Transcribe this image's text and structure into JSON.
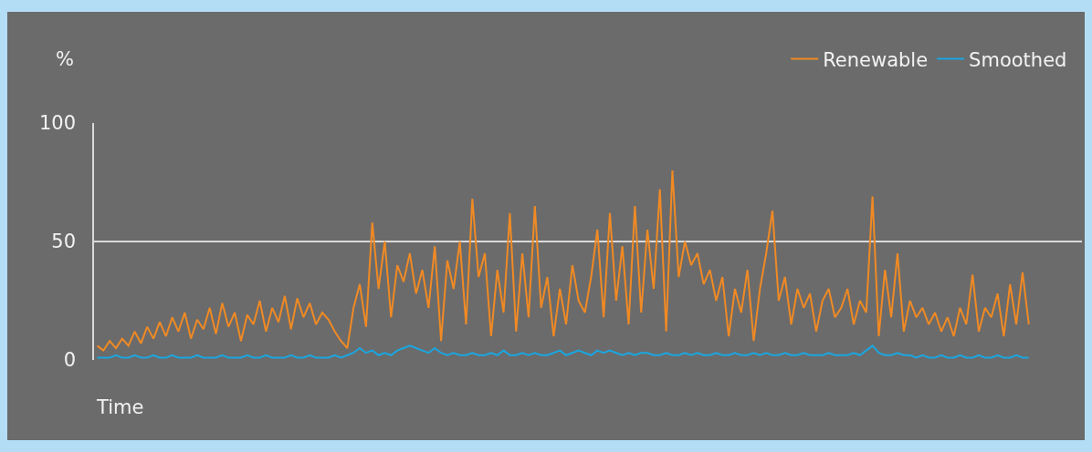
{
  "chart_data": {
    "type": "line",
    "xlabel": "Time",
    "ylabel": "%",
    "categories": [
      null,
      null,
      null,
      null,
      null,
      null,
      null,
      null,
      null,
      null,
      null,
      null,
      null,
      null,
      null,
      null,
      null,
      null,
      null,
      null,
      null,
      null,
      null,
      null,
      null,
      null,
      null,
      null,
      null,
      null,
      null,
      null,
      null,
      null,
      null,
      null,
      null,
      null,
      null,
      null,
      null,
      null,
      null,
      null,
      null,
      null,
      null,
      null,
      null,
      null,
      null,
      null,
      null,
      null,
      null,
      null,
      null,
      null,
      null,
      null,
      null,
      null,
      null,
      null,
      null,
      null,
      null,
      null,
      null,
      null,
      null,
      null,
      null,
      null,
      null,
      null,
      null,
      null,
      null,
      null,
      null,
      null,
      null,
      null,
      null,
      null,
      null,
      null,
      null,
      null,
      null,
      null,
      null,
      null,
      null,
      null,
      null,
      null,
      null,
      null,
      null,
      null,
      null,
      null,
      null,
      null,
      null,
      null,
      null,
      null,
      null,
      null,
      null,
      null,
      null,
      null,
      null,
      null,
      null,
      null,
      null,
      null,
      null,
      null,
      null,
      null,
      null,
      null,
      null,
      null,
      null,
      null,
      null,
      null,
      null,
      null,
      null,
      null,
      null,
      null,
      null,
      null,
      null,
      null,
      null,
      null,
      null,
      null,
      null,
      null,
      null,
      null,
      null,
      null,
      null,
      null,
      null,
      null
    ],
    "series": [
      {
        "name": "Renewable",
        "color": "#f08a24",
        "values": [
          6,
          4,
          8,
          5,
          9,
          6,
          12,
          7,
          14,
          9,
          16,
          10,
          18,
          12,
          20,
          9,
          17,
          13,
          22,
          11,
          24,
          14,
          20,
          8,
          19,
          15,
          25,
          12,
          22,
          16,
          27,
          13,
          26,
          18,
          24,
          15,
          20,
          17,
          12,
          8,
          5,
          22,
          32,
          14,
          58,
          30,
          50,
          18,
          40,
          33,
          45,
          28,
          38,
          22,
          48,
          8,
          42,
          30,
          50,
          15,
          68,
          35,
          45,
          10,
          38,
          20,
          62,
          12,
          45,
          18,
          65,
          22,
          35,
          10,
          30,
          15,
          40,
          25,
          20,
          35,
          55,
          18,
          62,
          25,
          48,
          15,
          65,
          20,
          55,
          30,
          72,
          12,
          80,
          35,
          50,
          40,
          45,
          32,
          38,
          25,
          35,
          10,
          30,
          20,
          38,
          8,
          30,
          45,
          63,
          25,
          35,
          15,
          30,
          22,
          28,
          12,
          25,
          30,
          18,
          22,
          30,
          15,
          25,
          20,
          69,
          10,
          38,
          18,
          45,
          12,
          25,
          18,
          22,
          15,
          20,
          12,
          18,
          10,
          22,
          15,
          36,
          12,
          22,
          18,
          28,
          10,
          32,
          15,
          37,
          15,
          null,
          null,
          null,
          null,
          null,
          null,
          null,
          null
        ]
      },
      {
        "name": "Smoothed",
        "color": "#1ba6e0",
        "values": [
          1,
          1,
          1,
          2,
          1,
          1,
          2,
          1,
          1,
          2,
          1,
          1,
          2,
          1,
          1,
          1,
          2,
          1,
          1,
          1,
          2,
          1,
          1,
          1,
          2,
          1,
          1,
          2,
          1,
          1,
          1,
          2,
          1,
          1,
          2,
          1,
          1,
          1,
          2,
          1,
          2,
          3,
          5,
          3,
          4,
          2,
          3,
          2,
          4,
          5,
          6,
          5,
          4,
          3,
          5,
          3,
          2,
          3,
          2,
          2,
          3,
          2,
          2,
          3,
          2,
          4,
          2,
          2,
          3,
          2,
          3,
          2,
          2,
          3,
          4,
          2,
          3,
          4,
          3,
          2,
          4,
          3,
          4,
          3,
          2,
          3,
          2,
          3,
          3,
          2,
          2,
          3,
          2,
          2,
          3,
          2,
          3,
          2,
          2,
          3,
          2,
          2,
          3,
          2,
          2,
          3,
          2,
          3,
          2,
          2,
          3,
          2,
          2,
          3,
          2,
          2,
          2,
          3,
          2,
          2,
          2,
          3,
          2,
          4,
          6,
          3,
          2,
          2,
          3,
          2,
          2,
          1,
          2,
          1,
          1,
          2,
          1,
          1,
          2,
          1,
          1,
          2,
          1,
          1,
          2,
          1,
          1,
          2,
          1,
          1,
          null,
          null,
          null,
          null,
          null,
          null,
          null,
          null
        ]
      }
    ],
    "ylim": [
      0,
      100
    ],
    "yticks": [
      0,
      50,
      100
    ],
    "grid": "y",
    "legend": "top right",
    "marker": "none",
    "line_style": "solid"
  }
}
